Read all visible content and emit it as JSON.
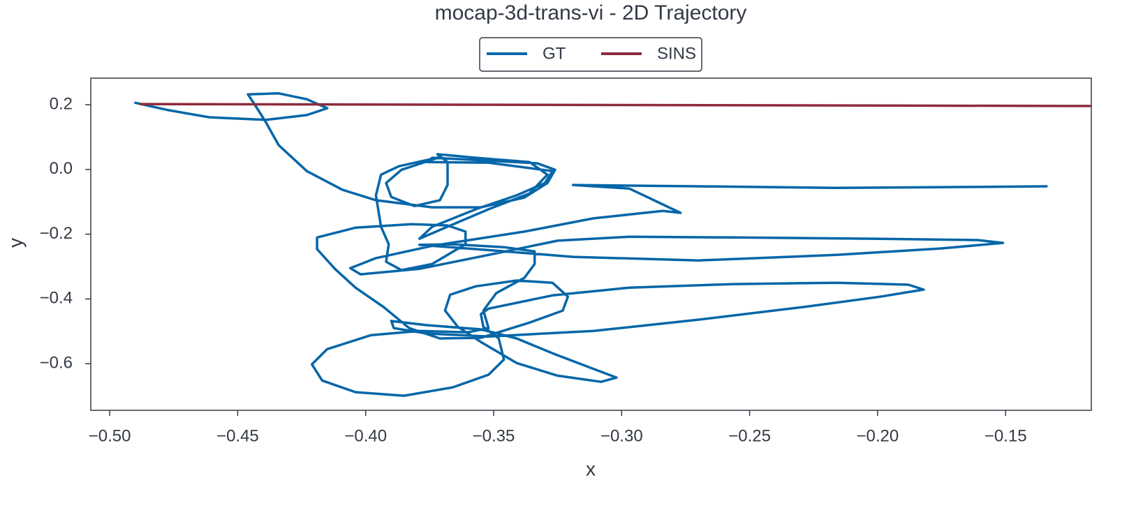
{
  "chart_data": {
    "type": "line",
    "title": "mocap-3d-trans-vi - 2D Trajectory",
    "x_label": "x",
    "y_label": "y",
    "xlim": [
      -0.5074,
      -0.1165
    ],
    "ylim": [
      -0.744,
      0.282
    ],
    "xticks": [
      {
        "value": -0.5,
        "label": "−0.50"
      },
      {
        "value": -0.45,
        "label": "−0.45"
      },
      {
        "value": -0.4,
        "label": "−0.40"
      },
      {
        "value": -0.35,
        "label": "−0.35"
      },
      {
        "value": -0.3,
        "label": "−0.30"
      },
      {
        "value": -0.25,
        "label": "−0.25"
      },
      {
        "value": -0.2,
        "label": "−0.20"
      },
      {
        "value": -0.15,
        "label": "−0.15"
      }
    ],
    "yticks": [
      0.2,
      {
        "value": 0,
        "label": "0.0"
      },
      {
        "value": -0.2,
        "label": "−0.2"
      },
      {
        "value": -0.4,
        "label": "−0.4"
      },
      {
        "value": -0.6,
        "label": "−0.6"
      }
    ],
    "grid": false,
    "legend": "top-center",
    "series": [
      {
        "name": "GT",
        "color": "#0566a8",
        "x": [
          -0.49,
          -0.477,
          -0.461,
          -0.439,
          -0.423,
          -0.415,
          -0.423,
          -0.434,
          -0.446,
          -0.443,
          -0.439,
          -0.434,
          -0.423,
          -0.409,
          -0.396,
          -0.374,
          -0.355,
          -0.338,
          -0.329,
          -0.326,
          -0.333,
          -0.352,
          -0.374,
          -0.376,
          -0.352,
          -0.327,
          -0.33,
          -0.341,
          -0.357,
          -0.374,
          -0.379,
          -0.368,
          -0.352,
          -0.336,
          -0.329,
          -0.336,
          -0.357,
          -0.372,
          -0.368,
          -0.368,
          -0.371,
          -0.381,
          -0.39,
          -0.392,
          -0.386,
          -0.371,
          -0.387,
          -0.394,
          -0.396,
          -0.394,
          -0.391,
          -0.392,
          -0.386,
          -0.374,
          -0.361,
          -0.361,
          -0.368,
          -0.382,
          -0.404,
          -0.419,
          -0.419,
          -0.412,
          -0.404,
          -0.393,
          -0.383,
          -0.371,
          -0.355,
          -0.336,
          -0.323,
          -0.321,
          -0.327,
          -0.341,
          -0.357,
          -0.367,
          -0.369,
          -0.364,
          -0.355,
          -0.341,
          -0.325,
          -0.308,
          -0.302,
          -0.312,
          -0.327,
          -0.341,
          -0.355,
          -0.376,
          -0.39,
          -0.389,
          -0.376,
          -0.352,
          -0.311,
          -0.27,
          -0.229,
          -0.199,
          -0.182,
          -0.188,
          -0.216,
          -0.256,
          -0.297,
          -0.327,
          -0.352,
          -0.355,
          -0.354,
          -0.348,
          -0.346,
          -0.352,
          -0.366,
          -0.385,
          -0.404,
          -0.417,
          -0.421,
          -0.415,
          -0.398,
          -0.379,
          -0.36,
          -0.352,
          -0.354,
          -0.349,
          -0.338,
          -0.334,
          -0.334,
          -0.346,
          -0.366,
          -0.379,
          -0.352,
          -0.319,
          -0.27,
          -0.216,
          -0.175,
          -0.151,
          -0.161,
          -0.202,
          -0.256,
          -0.297,
          -0.325,
          -0.352,
          -0.379,
          -0.402,
          -0.406,
          -0.396,
          -0.374,
          -0.338,
          -0.311,
          -0.284,
          -0.277,
          -0.297,
          -0.319,
          -0.27,
          -0.216,
          -0.161,
          -0.134
        ],
        "values": [
          0.206,
          0.183,
          0.161,
          0.153,
          0.168,
          0.189,
          0.217,
          0.235,
          0.232,
          0.196,
          0.146,
          0.075,
          -0.005,
          -0.063,
          -0.095,
          -0.117,
          -0.117,
          -0.087,
          -0.042,
          -0.001,
          0.019,
          0.027,
          0.036,
          0.023,
          0.021,
          -0.005,
          -0.042,
          -0.08,
          -0.123,
          -0.177,
          -0.214,
          -0.177,
          -0.123,
          -0.074,
          -0.016,
          0.023,
          0.036,
          0.047,
          0.023,
          -0.048,
          -0.095,
          -0.113,
          -0.085,
          -0.042,
          -0.001,
          0.038,
          0.01,
          -0.016,
          -0.08,
          -0.177,
          -0.231,
          -0.285,
          -0.311,
          -0.292,
          -0.231,
          -0.192,
          -0.173,
          -0.169,
          -0.18,
          -0.21,
          -0.246,
          -0.307,
          -0.365,
          -0.425,
          -0.49,
          -0.522,
          -0.52,
          -0.473,
          -0.436,
          -0.393,
          -0.35,
          -0.343,
          -0.361,
          -0.387,
          -0.436,
          -0.486,
          -0.533,
          -0.598,
          -0.637,
          -0.656,
          -0.643,
          -0.613,
          -0.568,
          -0.522,
          -0.494,
          -0.481,
          -0.468,
          -0.49,
          -0.507,
          -0.516,
          -0.499,
          -0.464,
          -0.425,
          -0.393,
          -0.371,
          -0.356,
          -0.35,
          -0.354,
          -0.365,
          -0.389,
          -0.43,
          -0.447,
          -0.486,
          -0.522,
          -0.587,
          -0.634,
          -0.673,
          -0.699,
          -0.688,
          -0.652,
          -0.602,
          -0.555,
          -0.512,
          -0.499,
          -0.503,
          -0.49,
          -0.436,
          -0.382,
          -0.335,
          -0.292,
          -0.253,
          -0.24,
          -0.231,
          -0.233,
          -0.249,
          -0.27,
          -0.281,
          -0.264,
          -0.244,
          -0.227,
          -0.218,
          -0.214,
          -0.21,
          -0.208,
          -0.22,
          -0.264,
          -0.307,
          -0.324,
          -0.305,
          -0.274,
          -0.236,
          -0.192,
          -0.151,
          -0.128,
          -0.134,
          -0.059,
          -0.048,
          -0.052,
          -0.057,
          -0.054,
          -0.052
        ]
      },
      {
        "name": "SINS",
        "color": "#8e2b3c",
        "x": [
          -0.488,
          -0.117
        ],
        "values": [
          0.202,
          0.196
        ]
      }
    ]
  }
}
